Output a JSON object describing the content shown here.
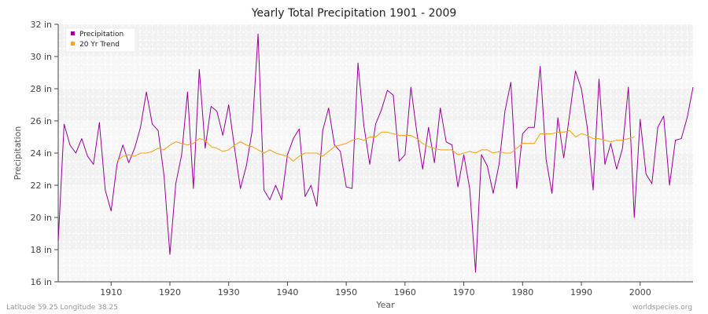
{
  "chart_data": {
    "type": "line",
    "title": "Yearly Total Precipitation 1901 - 2009",
    "xlabel": "Year",
    "ylabel": "Precipitation",
    "xlim": [
      1901,
      2009
    ],
    "ylim": [
      16,
      32
    ],
    "x_ticks": [
      1910,
      1920,
      1930,
      1940,
      1950,
      1960,
      1970,
      1980,
      1990,
      2000
    ],
    "y_ticks": [
      16,
      18,
      20,
      22,
      24,
      26,
      28,
      30,
      32
    ],
    "y_tick_labels": [
      "16 in",
      "18 in",
      "20 in",
      "22 in",
      "24 in",
      "26 in",
      "28 in",
      "30 in",
      "32 in"
    ],
    "legend_position": "top-left",
    "series": [
      {
        "name": "Precipitation",
        "color": "#990099",
        "x_start": 1901,
        "values": [
          18.5,
          25.8,
          24.5,
          24.0,
          24.9,
          23.8,
          23.3,
          25.9,
          21.7,
          20.4,
          23.3,
          24.5,
          23.4,
          24.3,
          25.6,
          27.8,
          25.8,
          25.4,
          22.6,
          17.7,
          22.1,
          23.9,
          27.8,
          21.8,
          29.2,
          24.3,
          26.9,
          26.6,
          25.1,
          27.0,
          24.3,
          21.8,
          23.2,
          25.4,
          31.4,
          21.7,
          21.1,
          22.0,
          21.1,
          23.9,
          24.9,
          25.5,
          21.3,
          22.0,
          20.7,
          25.4,
          26.8,
          24.5,
          24.1,
          21.9,
          21.8,
          29.6,
          25.7,
          23.3,
          25.8,
          26.7,
          27.9,
          27.6,
          23.5,
          23.9,
          28.1,
          25.3,
          23.0,
          25.6,
          23.4,
          26.8,
          24.7,
          24.5,
          21.9,
          23.9,
          21.8,
          16.6,
          23.9,
          23.2,
          21.5,
          23.3,
          26.6,
          28.4,
          21.8,
          25.2,
          25.6,
          25.6,
          29.4,
          23.6,
          21.5,
          26.2,
          23.7,
          26.4,
          29.1,
          28.0,
          25.6,
          21.7,
          28.6,
          23.3,
          24.6,
          23.0,
          24.3,
          28.1,
          20.0,
          26.1,
          22.7,
          22.1,
          25.6,
          26.3,
          22.0,
          24.8,
          24.9,
          26.2,
          28.1
        ]
      },
      {
        "name": "20 Yr Trend",
        "color": "#f5a623",
        "x_start": 1911,
        "values": [
          23.5,
          23.8,
          23.9,
          23.8,
          24.0,
          24.0,
          24.1,
          24.3,
          24.2,
          24.5,
          24.7,
          24.6,
          24.5,
          24.6,
          24.9,
          24.8,
          24.4,
          24.3,
          24.1,
          24.2,
          24.5,
          24.7,
          24.5,
          24.4,
          24.2,
          24.0,
          24.2,
          24.0,
          23.9,
          23.8,
          23.5,
          23.8,
          24.0,
          24.0,
          24.0,
          23.8,
          24.1,
          24.4,
          24.5,
          24.6,
          24.8,
          24.9,
          24.8,
          25.0,
          25.0,
          25.3,
          25.3,
          25.2,
          25.1,
          25.1,
          25.1,
          24.9,
          24.6,
          24.4,
          24.3,
          24.2,
          24.2,
          24.2,
          23.9,
          24.0,
          24.1,
          24.0,
          24.2,
          24.2,
          24.0,
          24.1,
          24.0,
          24.0,
          24.3,
          24.6,
          24.6,
          24.6,
          25.2,
          25.2,
          25.2,
          25.3,
          25.3,
          25.4,
          25.0,
          25.2,
          25.1,
          24.9,
          24.9,
          24.8,
          24.7,
          24.8,
          24.8,
          24.9,
          25.0
        ]
      }
    ]
  },
  "footer": {
    "left": "Latitude 59.25 Longitude 38.25",
    "right": "worldspecies.org"
  }
}
